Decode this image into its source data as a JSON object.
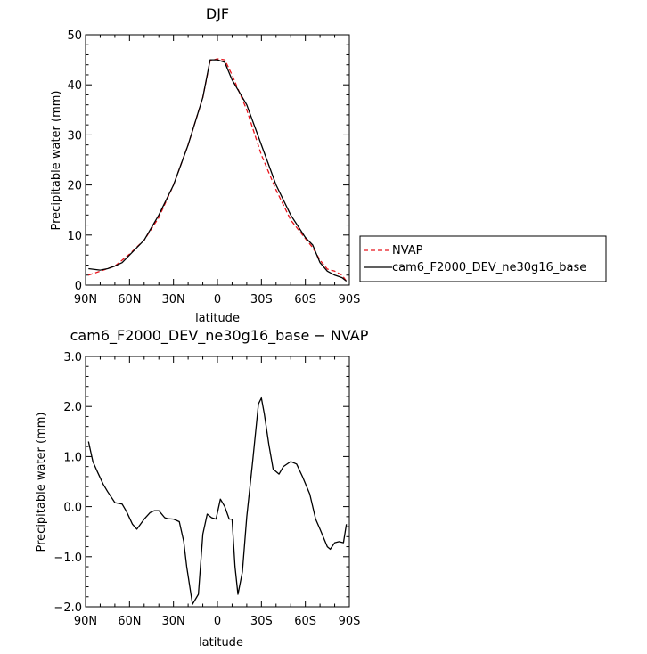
{
  "chart_data": [
    {
      "type": "line",
      "title": "DJF",
      "xlabel": "latitude",
      "ylabel": "Precipitable water (mm)",
      "xlim": [
        -90,
        90
      ],
      "ylim": [
        0,
        50
      ],
      "xticks": [
        -90,
        -60,
        -30,
        0,
        30,
        60,
        90
      ],
      "xtick_labels": [
        "90N",
        "60N",
        "30N",
        "0",
        "30S",
        "60S",
        "90S"
      ],
      "yticks": [
        0,
        10,
        20,
        30,
        40,
        50
      ],
      "ytick_labels": [
        "0",
        "10",
        "20",
        "30",
        "40",
        "50"
      ],
      "legend_position": "right",
      "series": [
        {
          "name": "NVAP",
          "color": "#e8141c",
          "dash": "dashed",
          "x": [
            -88,
            -80,
            -70,
            -60,
            -50,
            -40,
            -30,
            -20,
            -10,
            -5,
            0,
            5,
            10,
            20,
            30,
            40,
            50,
            60,
            65,
            70,
            75,
            80,
            85,
            88
          ],
          "y": [
            2.0,
            2.8,
            3.8,
            6.2,
            9.0,
            13.5,
            20.0,
            28.0,
            37.5,
            44.8,
            45.2,
            45.0,
            42.0,
            35.0,
            26.0,
            19.0,
            13.0,
            9.3,
            7.5,
            5.0,
            3.2,
            2.8,
            2.0,
            0.8
          ]
        },
        {
          "name": "cam6_F2000_DEV_ne30g16_base",
          "color": "#000000",
          "dash": "solid",
          "x": [
            -88,
            -80,
            -75,
            -70,
            -65,
            -60,
            -50,
            -40,
            -30,
            -20,
            -10,
            -5,
            0,
            5,
            10,
            20,
            30,
            40,
            50,
            60,
            65,
            70,
            75,
            80,
            85,
            88
          ],
          "y": [
            3.3,
            3.0,
            3.3,
            3.8,
            4.5,
            6.0,
            9.0,
            14.0,
            20.0,
            28.0,
            37.5,
            45.0,
            45.0,
            44.5,
            41.0,
            36.0,
            28.0,
            20.0,
            14.0,
            9.5,
            8.0,
            4.5,
            2.8,
            2.0,
            1.5,
            0.8
          ]
        }
      ]
    },
    {
      "type": "line",
      "title": "cam6_F2000_DEV_ne30g16_base − NVAP",
      "xlabel": "latitude",
      "ylabel": "Precipitable water (mm)",
      "xlim": [
        -90,
        90
      ],
      "ylim": [
        -2.0,
        3.0
      ],
      "xticks": [
        -90,
        -60,
        -30,
        0,
        30,
        60,
        90
      ],
      "xtick_labels": [
        "90N",
        "60N",
        "30N",
        "0",
        "30S",
        "60S",
        "90S"
      ],
      "yticks": [
        -2,
        -1,
        0,
        1,
        2,
        3
      ],
      "ytick_labels": [
        "−2.0",
        "−1.0",
        "0.0",
        "1.0",
        "2.0",
        "3.0"
      ],
      "series": [
        {
          "color": "#000000",
          "dash": "solid",
          "x": [
            -88,
            -85,
            -82,
            -78,
            -75,
            -70,
            -65,
            -62,
            -58,
            -55,
            -50,
            -46,
            -43,
            -40,
            -36,
            -34,
            -30,
            -26,
            -23,
            -21,
            -17,
            -13,
            -10,
            -7,
            -4,
            -1,
            2,
            5,
            8,
            10,
            12,
            14,
            17,
            20,
            24,
            28,
            30,
            32,
            35,
            38,
            42,
            45,
            50,
            54,
            58,
            63,
            67,
            70,
            75,
            77,
            80,
            83,
            86,
            88
          ],
          "y": [
            1.3,
            0.9,
            0.7,
            0.45,
            0.3,
            0.08,
            0.05,
            -0.1,
            -0.35,
            -0.45,
            -0.25,
            -0.12,
            -0.08,
            -0.08,
            -0.22,
            -0.24,
            -0.25,
            -0.3,
            -0.7,
            -1.2,
            -1.95,
            -1.75,
            -0.55,
            -0.15,
            -0.22,
            -0.25,
            0.15,
            0.0,
            -0.25,
            -0.25,
            -1.2,
            -1.75,
            -1.3,
            -0.2,
            0.9,
            2.05,
            2.17,
            1.85,
            1.25,
            0.75,
            0.65,
            0.8,
            0.9,
            0.85,
            0.6,
            0.25,
            -0.25,
            -0.45,
            -0.8,
            -0.85,
            -0.72,
            -0.7,
            -0.72,
            -0.35
          ]
        }
      ]
    }
  ]
}
